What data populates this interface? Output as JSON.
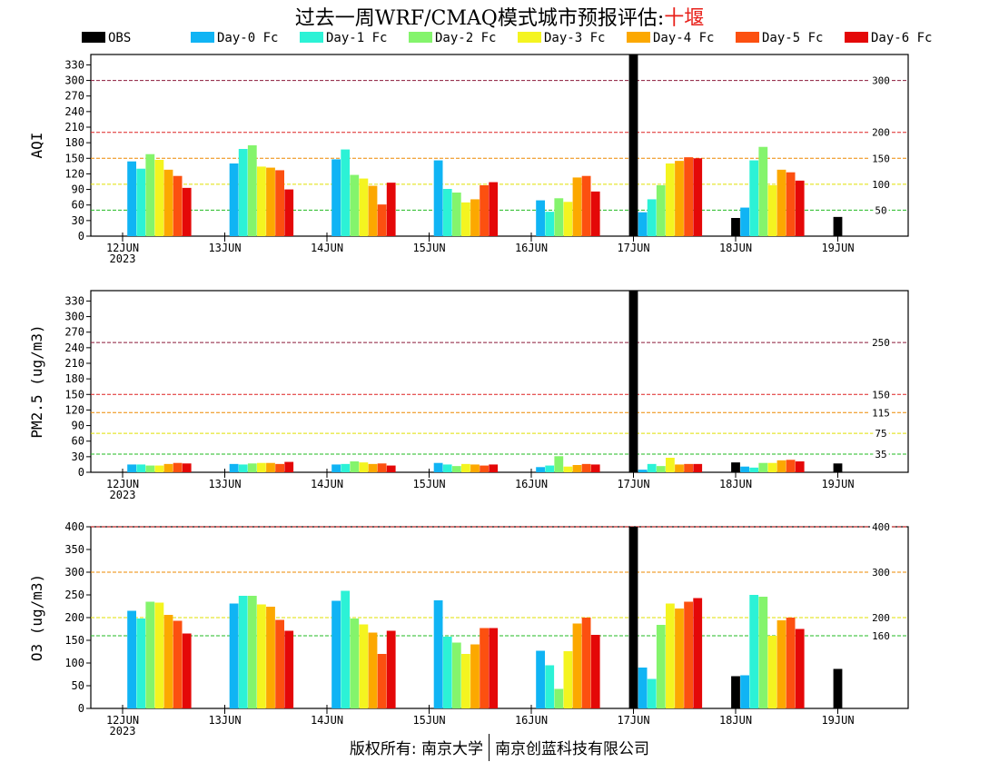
{
  "title": {
    "prefix": "过去一周WRF/CMAQ模式城市预报评估:",
    "city": "十堰"
  },
  "footer": {
    "left": "版权所有: 南京大学",
    "right": "南京创蓝科技有限公司"
  },
  "colors": {
    "OBS": "#000000",
    "Day-0 Fc": "#10b4f4",
    "Day-1 Fc": "#2cf2d6",
    "Day-2 Fc": "#84f46c",
    "Day-3 Fc": "#f4f420",
    "Day-4 Fc": "#fca800",
    "Day-5 Fc": "#fc5010",
    "Day-6 Fc": "#e40808",
    "threshold_green": "#22bb22",
    "threshold_yellow": "#e0e000",
    "threshold_orange": "#ee8800",
    "threshold_red": "#dd2222",
    "threshold_maroon": "#8b1a3a"
  },
  "chart_data": [
    {
      "type": "bar",
      "ylabel": "AQI",
      "ylim": [
        0,
        350
      ],
      "yticks": [
        0,
        30,
        60,
        90,
        120,
        150,
        180,
        210,
        240,
        270,
        300,
        330
      ],
      "categories": [
        "12JUN\n2023",
        "13JUN",
        "14JUN",
        "15JUN",
        "16JUN",
        "17JUN",
        "18JUN",
        "19JUN"
      ],
      "thresholds": [
        {
          "value": 50,
          "label": "50",
          "color": "threshold_green"
        },
        {
          "value": 100,
          "label": "100",
          "color": "threshold_yellow"
        },
        {
          "value": 150,
          "label": "150",
          "color": "threshold_orange"
        },
        {
          "value": 200,
          "label": "200",
          "color": "threshold_red"
        },
        {
          "value": 300,
          "label": "300",
          "color": "threshold_maroon"
        }
      ],
      "series": [
        {
          "name": "OBS",
          "values": [
            null,
            null,
            null,
            null,
            null,
            350,
            35,
            37
          ]
        },
        {
          "name": "Day-0 Fc",
          "values": [
            144,
            140,
            148,
            146,
            69,
            46,
            55,
            null
          ]
        },
        {
          "name": "Day-1 Fc",
          "values": [
            130,
            168,
            167,
            91,
            47,
            71,
            146,
            null
          ]
        },
        {
          "name": "Day-2 Fc",
          "values": [
            158,
            175,
            118,
            84,
            73,
            98,
            172,
            null
          ]
        },
        {
          "name": "Day-3 Fc",
          "values": [
            147,
            134,
            111,
            65,
            66,
            140,
            98,
            null
          ]
        },
        {
          "name": "Day-4 Fc",
          "values": [
            128,
            132,
            97,
            71,
            113,
            145,
            128,
            null
          ]
        },
        {
          "name": "Day-5 Fc",
          "values": [
            116,
            127,
            61,
            98,
            116,
            152,
            123,
            null
          ]
        },
        {
          "name": "Day-6 Fc",
          "values": [
            93,
            90,
            103,
            104,
            86,
            150,
            107,
            null
          ]
        }
      ]
    },
    {
      "type": "bar",
      "ylabel": "PM2.5 (ug/m3)",
      "ylim": [
        0,
        350
      ],
      "yticks": [
        0,
        30,
        60,
        90,
        120,
        150,
        180,
        210,
        240,
        270,
        300,
        330
      ],
      "categories": [
        "12JUN\n2023",
        "13JUN",
        "14JUN",
        "15JUN",
        "16JUN",
        "17JUN",
        "18JUN",
        "19JUN"
      ],
      "thresholds": [
        {
          "value": 35,
          "label": "35",
          "color": "threshold_green"
        },
        {
          "value": 75,
          "label": "75",
          "color": "threshold_yellow"
        },
        {
          "value": 115,
          "label": "115",
          "color": "threshold_orange"
        },
        {
          "value": 150,
          "label": "150",
          "color": "threshold_red"
        },
        {
          "value": 250,
          "label": "250",
          "color": "threshold_maroon"
        }
      ],
      "series": [
        {
          "name": "OBS",
          "values": [
            null,
            null,
            null,
            null,
            null,
            350,
            19,
            17
          ]
        },
        {
          "name": "Day-0 Fc",
          "values": [
            15,
            16,
            15,
            18,
            10,
            5,
            11,
            null
          ]
        },
        {
          "name": "Day-1 Fc",
          "values": [
            15,
            15,
            16,
            15,
            13,
            16,
            9,
            null
          ]
        },
        {
          "name": "Day-2 Fc",
          "values": [
            13,
            17,
            21,
            12,
            31,
            12,
            18,
            null
          ]
        },
        {
          "name": "Day-3 Fc",
          "values": [
            13,
            18,
            19,
            16,
            11,
            28,
            18,
            null
          ]
        },
        {
          "name": "Day-4 Fc",
          "values": [
            16,
            18,
            16,
            15,
            14,
            15,
            23,
            null
          ]
        },
        {
          "name": "Day-5 Fc",
          "values": [
            18,
            16,
            17,
            13,
            16,
            16,
            24,
            null
          ]
        },
        {
          "name": "Day-6 Fc",
          "values": [
            17,
            20,
            13,
            15,
            15,
            16,
            21,
            null
          ]
        }
      ]
    },
    {
      "type": "bar",
      "ylabel": "O3 (ug/m3)",
      "ylim": [
        0,
        400
      ],
      "yticks": [
        0,
        50,
        100,
        150,
        200,
        250,
        300,
        350,
        400
      ],
      "categories": [
        "12JUN\n2023",
        "13JUN",
        "14JUN",
        "15JUN",
        "16JUN",
        "17JUN",
        "18JUN",
        "19JUN"
      ],
      "thresholds": [
        {
          "value": 160,
          "label": "160",
          "color": "threshold_green"
        },
        {
          "value": 200,
          "label": "200",
          "color": "threshold_yellow"
        },
        {
          "value": 300,
          "label": "300",
          "color": "threshold_orange"
        },
        {
          "value": 400,
          "label": "400",
          "color": "threshold_red"
        }
      ],
      "series": [
        {
          "name": "OBS",
          "values": [
            null,
            null,
            null,
            null,
            null,
            400,
            71,
            87
          ]
        },
        {
          "name": "Day-0 Fc",
          "values": [
            215,
            231,
            237,
            238,
            127,
            90,
            73,
            null
          ]
        },
        {
          "name": "Day-1 Fc",
          "values": [
            198,
            248,
            259,
            158,
            95,
            65,
            250,
            null
          ]
        },
        {
          "name": "Day-2 Fc",
          "values": [
            235,
            248,
            198,
            145,
            43,
            184,
            246,
            null
          ]
        },
        {
          "name": "Day-3 Fc",
          "values": [
            233,
            229,
            185,
            120,
            126,
            231,
            160,
            null
          ]
        },
        {
          "name": "Day-4 Fc",
          "values": [
            206,
            224,
            167,
            141,
            187,
            220,
            194,
            null
          ]
        },
        {
          "name": "Day-5 Fc",
          "values": [
            193,
            195,
            120,
            177,
            200,
            235,
            200,
            null
          ]
        },
        {
          "name": "Day-6 Fc",
          "values": [
            165,
            171,
            171,
            177,
            162,
            243,
            175,
            null
          ]
        }
      ]
    }
  ]
}
